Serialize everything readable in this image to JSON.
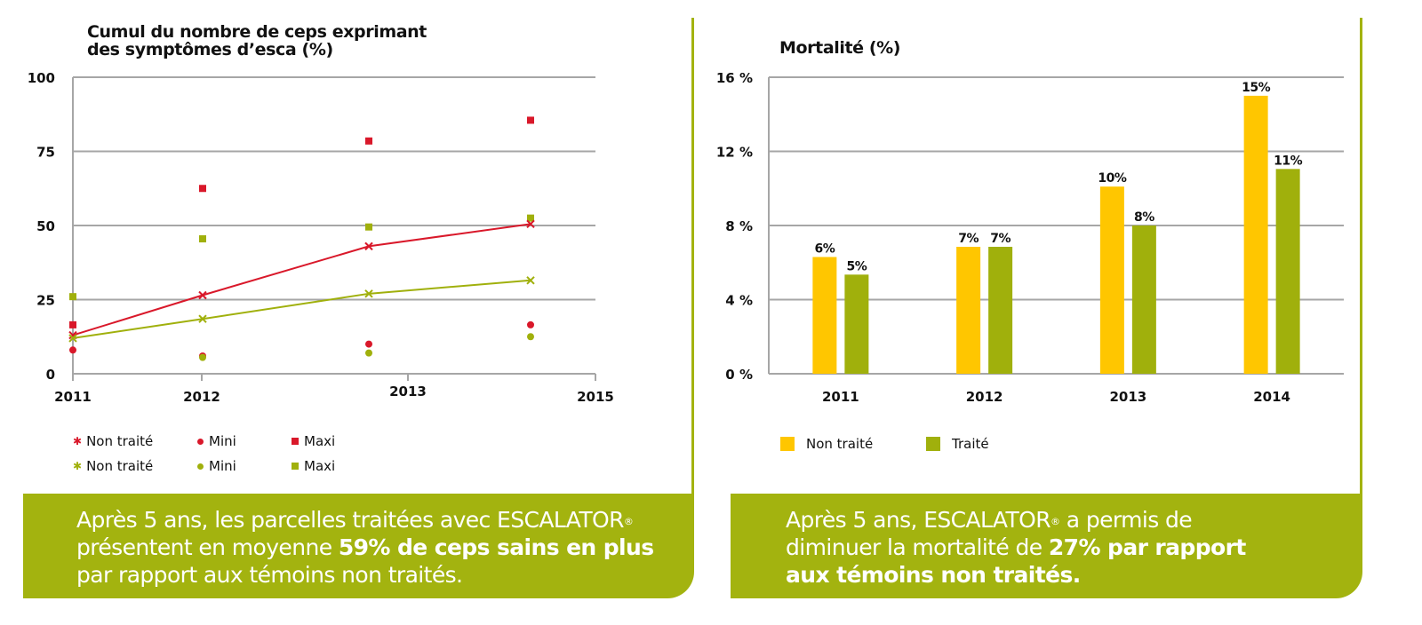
{
  "colors": {
    "brand_green": "#a3b30f",
    "red": "#d9182a",
    "yellow": "#ffc600",
    "olive": "#a0b00c",
    "grid": "#a6a6a6"
  },
  "chart_data": [
    {
      "type": "line",
      "title": "Cumul du nombre de ceps exprimant des symptômes d’esca (%)",
      "title_lines": [
        "Cumul du nombre de ceps exprimant",
        "des symptômes d’esca (%)"
      ],
      "xlabel": "",
      "ylabel": "",
      "ylim": [
        0,
        100
      ],
      "yticks": [
        "0",
        "25",
        "50",
        "75",
        "100"
      ],
      "ytick_values": [
        0,
        25,
        50,
        75,
        100
      ],
      "xticks": [
        "2011",
        "2012",
        "2013",
        "2015"
      ],
      "grid": true,
      "legend_position": "bottom",
      "point_positions": [
        "p1",
        "p2",
        "p3",
        "p4"
      ],
      "series": [
        {
          "name": "Non traité",
          "group": "untreated",
          "kind": "line",
          "marker": "x",
          "color": "#d9182a",
          "values": [
            13,
            26.5,
            43,
            50.5
          ]
        },
        {
          "name": "Mini",
          "group": "untreated",
          "kind": "scatter",
          "marker": "circle",
          "color": "#d9182a",
          "values": [
            8,
            6,
            10,
            16.5
          ]
        },
        {
          "name": "Maxi",
          "group": "untreated",
          "kind": "scatter",
          "marker": "square",
          "color": "#d9182a",
          "values": [
            16.5,
            62.5,
            78.5,
            85.5
          ]
        },
        {
          "name": "Non traité",
          "group": "treated",
          "kind": "line",
          "marker": "x",
          "color": "#a0b00c",
          "values": [
            12,
            18.5,
            27,
            31.5
          ]
        },
        {
          "name": "Mini",
          "group": "treated",
          "kind": "scatter",
          "marker": "circle",
          "color": "#a0b00c",
          "values": [
            null,
            5.5,
            7,
            12.5
          ]
        },
        {
          "name": "Maxi",
          "group": "treated",
          "kind": "scatter",
          "marker": "square",
          "color": "#a0b00c",
          "values": [
            26,
            45.5,
            49.5,
            52.5
          ]
        }
      ]
    },
    {
      "type": "bar",
      "title": "Mortalité (%)",
      "xlabel": "",
      "ylabel": "",
      "ylim": [
        0,
        16
      ],
      "yticks": [
        "0 %",
        "4 %",
        "8 %",
        "12 %",
        "16 %"
      ],
      "ytick_values": [
        0,
        4,
        8,
        12,
        16
      ],
      "categories": [
        "2011",
        "2012",
        "2013",
        "2014"
      ],
      "grid": true,
      "legend_position": "bottom",
      "series": [
        {
          "name": "Non traité",
          "color": "#ffc600",
          "values": [
            6.3,
            6.85,
            10.1,
            15.0
          ],
          "labels": [
            "6%",
            "7%",
            "10%",
            "15%"
          ]
        },
        {
          "name": "Traité",
          "color": "#a0b00c",
          "values": [
            5.35,
            6.85,
            8.0,
            11.05
          ],
          "labels": [
            "5%",
            "7%",
            "8%",
            "11%"
          ]
        }
      ]
    }
  ],
  "left_banner": {
    "line1": "Après 5 ans, les parcelles traitées avec ESCALATOR",
    "reg": "®",
    "line2_normal": "présentent en moyenne ",
    "line2_bold": "59% de ceps sains en plus",
    "line3": "par rapport aux témoins non traités."
  },
  "right_banner": {
    "line1_a": "Après 5 ans, ESCALATOR",
    "reg": "®",
    "line1_b": " a permis de",
    "line2_normal": "diminuer la mortalité de ",
    "line2_bold": "27% par rapport",
    "line3_bold": "aux témoins non traités."
  }
}
